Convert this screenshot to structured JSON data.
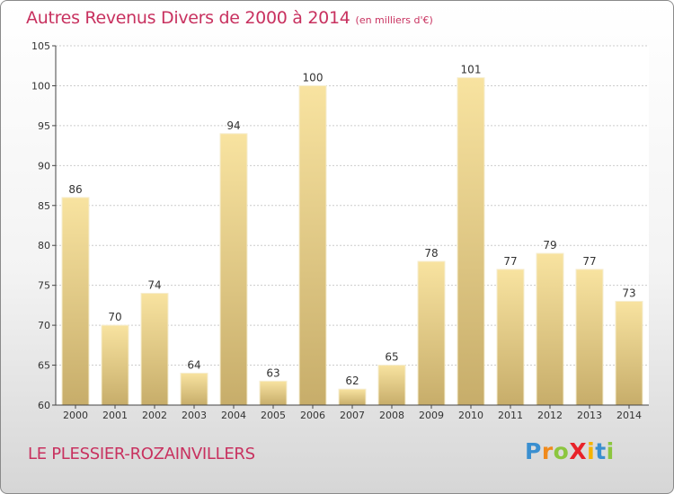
{
  "title": "Autres Revenus Divers de 2000 à 2014",
  "subtitle": "(en milliers d'€)",
  "location": "LE PLESSIER-ROZAINVILLERS",
  "logo": {
    "text": "ProXiti",
    "letters": [
      {
        "ch": "P",
        "color": "#3a8fd0"
      },
      {
        "ch": "r",
        "color": "#f08a1c"
      },
      {
        "ch": "o",
        "color": "#8cc63f"
      },
      {
        "ch": "X",
        "color": "#e8232a"
      },
      {
        "ch": "i",
        "color": "#f6b400"
      },
      {
        "ch": "t",
        "color": "#3a8fd0"
      },
      {
        "ch": "i",
        "color": "#8cc63f"
      }
    ]
  },
  "colors": {
    "title": "#c8315f",
    "bar_top": "#f8e3a0",
    "bar_bottom": "#c7ad6a",
    "bar_edge": "#f6eed0",
    "grid": "#cccccc"
  },
  "chart_data": {
    "type": "bar",
    "categories": [
      "2000",
      "2001",
      "2002",
      "2003",
      "2004",
      "2005",
      "2006",
      "2007",
      "2008",
      "2009",
      "2010",
      "2011",
      "2012",
      "2013",
      "2014"
    ],
    "values": [
      86,
      70,
      74,
      64,
      94,
      63,
      100,
      62,
      65,
      78,
      101,
      77,
      79,
      77,
      73
    ],
    "title": "Autres Revenus Divers de 2000 à 2014",
    "subtitle": "(en milliers d'€)",
    "ylim": [
      60,
      105
    ],
    "yticks": [
      60,
      65,
      70,
      75,
      80,
      85,
      90,
      95,
      100,
      105
    ],
    "grid": "horizontal dotted",
    "data_labels": true
  }
}
